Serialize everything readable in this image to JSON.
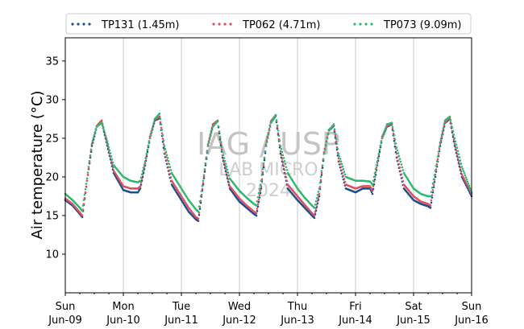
{
  "chart_data": {
    "type": "scatter",
    "ylabel": "Air temperature (°C)",
    "ylim": [
      5,
      38
    ],
    "yticks": [
      10,
      15,
      20,
      25,
      30,
      35
    ],
    "xlim": [
      "2024-06-09",
      "2024-06-16"
    ],
    "xticks": [
      {
        "date": "2024-06-09",
        "day": "Sun",
        "label": "Jun-09"
      },
      {
        "date": "2024-06-10",
        "day": "Mon",
        "label": "Jun-10"
      },
      {
        "date": "2024-06-11",
        "day": "Tue",
        "label": "Jun-11"
      },
      {
        "date": "2024-06-12",
        "day": "Wed",
        "label": "Jun-12"
      },
      {
        "date": "2024-06-13",
        "day": "Thu",
        "label": "Jun-13"
      },
      {
        "date": "2024-06-14",
        "day": "Fri",
        "label": "Jun-14"
      },
      {
        "date": "2024-06-15",
        "day": "Sat",
        "label": "Jun-15"
      },
      {
        "date": "2024-06-16",
        "day": "Sun",
        "label": "Jun-16"
      }
    ],
    "grid": "vertical",
    "legend_position": "top",
    "watermark": {
      "line1": "IAG / USP",
      "line2": "LAB MICRO",
      "line3": "2024"
    },
    "series": [
      {
        "name": "TP131 (1.45m)",
        "color": "#1f4e8c",
        "x": [
          "2024-06-09 00:00",
          "2024-06-09 03:00",
          "2024-06-09 06:00",
          "2024-06-09 07:00",
          "2024-06-09 09:00",
          "2024-06-09 11:00",
          "2024-06-09 13:00",
          "2024-06-09 15:00",
          "2024-06-09 17:00",
          "2024-06-09 20:00",
          "2024-06-10 00:00",
          "2024-06-10 03:00",
          "2024-06-10 06:00",
          "2024-06-10 07:00",
          "2024-06-10 09:00",
          "2024-06-10 11:00",
          "2024-06-10 13:00",
          "2024-06-10 15:00",
          "2024-06-10 17:00",
          "2024-06-10 20:00",
          "2024-06-11 00:00",
          "2024-06-11 03:00",
          "2024-06-11 06:00",
          "2024-06-11 07:00",
          "2024-06-11 09:00",
          "2024-06-11 11:00",
          "2024-06-11 13:00",
          "2024-06-11 15:00",
          "2024-06-11 17:00",
          "2024-06-11 20:00",
          "2024-06-12 00:00",
          "2024-06-12 03:00",
          "2024-06-12 06:00",
          "2024-06-12 07:00",
          "2024-06-12 09:00",
          "2024-06-12 11:00",
          "2024-06-12 13:00",
          "2024-06-12 15:00",
          "2024-06-12 17:00",
          "2024-06-12 20:00",
          "2024-06-13 00:00",
          "2024-06-13 03:00",
          "2024-06-13 06:00",
          "2024-06-13 07:00",
          "2024-06-13 09:00",
          "2024-06-13 11:00",
          "2024-06-13 13:00",
          "2024-06-13 15:00",
          "2024-06-13 17:00",
          "2024-06-13 20:00",
          "2024-06-14 00:00",
          "2024-06-14 03:00",
          "2024-06-14 06:00",
          "2024-06-14 07:00",
          "2024-06-14 09:00",
          "2024-06-14 11:00",
          "2024-06-14 13:00",
          "2024-06-14 15:00",
          "2024-06-14 17:00",
          "2024-06-14 20:00",
          "2024-06-15 00:00",
          "2024-06-15 03:00",
          "2024-06-15 06:00",
          "2024-06-15 07:00",
          "2024-06-15 09:00",
          "2024-06-15 11:00",
          "2024-06-15 13:00",
          "2024-06-15 15:00",
          "2024-06-15 17:00",
          "2024-06-15 20:00",
          "2024-06-16 00:00"
        ],
        "y": [
          17.0,
          16.3,
          15.2,
          14.8,
          19.5,
          24.0,
          26.5,
          27.2,
          24.5,
          20.5,
          18.3,
          18.0,
          18.0,
          18.5,
          21.5,
          25.0,
          27.3,
          27.6,
          23.0,
          19.0,
          17.0,
          15.5,
          14.5,
          14.3,
          19.0,
          24.0,
          26.7,
          27.2,
          22.5,
          18.5,
          16.8,
          16.0,
          15.2,
          15.0,
          18.5,
          24.0,
          27.0,
          27.9,
          23.0,
          18.5,
          17.0,
          16.0,
          15.0,
          14.7,
          17.5,
          23.0,
          26.0,
          26.6,
          22.0,
          18.5,
          18.0,
          18.5,
          18.5,
          17.8,
          21.5,
          25.0,
          26.5,
          26.8,
          22.5,
          18.5,
          17.0,
          16.5,
          16.2,
          16.0,
          20.0,
          24.0,
          27.0,
          27.5,
          24.0,
          20.0,
          17.5
        ]
      },
      {
        "name": "TP062 (4.71m)",
        "color": "#d9525e",
        "x": [
          "2024-06-09 00:00",
          "2024-06-09 03:00",
          "2024-06-09 06:00",
          "2024-06-09 07:00",
          "2024-06-09 09:00",
          "2024-06-09 11:00",
          "2024-06-09 13:00",
          "2024-06-09 15:00",
          "2024-06-09 17:00",
          "2024-06-09 20:00",
          "2024-06-10 00:00",
          "2024-06-10 03:00",
          "2024-06-10 06:00",
          "2024-06-10 07:00",
          "2024-06-10 09:00",
          "2024-06-10 11:00",
          "2024-06-10 13:00",
          "2024-06-10 15:00",
          "2024-06-10 17:00",
          "2024-06-10 20:00",
          "2024-06-11 00:00",
          "2024-06-11 03:00",
          "2024-06-11 06:00",
          "2024-06-11 07:00",
          "2024-06-11 09:00",
          "2024-06-11 11:00",
          "2024-06-11 13:00",
          "2024-06-11 15:00",
          "2024-06-11 17:00",
          "2024-06-11 20:00",
          "2024-06-12 00:00",
          "2024-06-12 03:00",
          "2024-06-12 06:00",
          "2024-06-12 07:00",
          "2024-06-12 09:00",
          "2024-06-12 11:00",
          "2024-06-12 13:00",
          "2024-06-12 15:00",
          "2024-06-12 17:00",
          "2024-06-12 20:00",
          "2024-06-13 00:00",
          "2024-06-13 03:00",
          "2024-06-13 06:00",
          "2024-06-13 07:00",
          "2024-06-13 09:00",
          "2024-06-13 11:00",
          "2024-06-13 13:00",
          "2024-06-13 15:00",
          "2024-06-13 17:00",
          "2024-06-13 20:00",
          "2024-06-14 00:00",
          "2024-06-14 03:00",
          "2024-06-14 06:00",
          "2024-06-14 07:00",
          "2024-06-14 09:00",
          "2024-06-14 11:00",
          "2024-06-14 13:00",
          "2024-06-14 15:00",
          "2024-06-14 17:00",
          "2024-06-14 20:00",
          "2024-06-15 00:00",
          "2024-06-15 03:00",
          "2024-06-15 06:00",
          "2024-06-15 07:00",
          "2024-06-15 09:00",
          "2024-06-15 11:00",
          "2024-06-15 13:00",
          "2024-06-15 15:00",
          "2024-06-15 17:00",
          "2024-06-15 20:00",
          "2024-06-16 00:00"
        ],
        "y": [
          17.2,
          16.5,
          15.4,
          15.0,
          19.5,
          24.2,
          26.6,
          27.3,
          24.8,
          20.8,
          18.8,
          18.5,
          18.5,
          18.8,
          21.8,
          25.2,
          27.4,
          27.8,
          23.5,
          19.5,
          17.5,
          16.0,
          14.8,
          14.6,
          19.2,
          24.2,
          26.8,
          27.3,
          22.8,
          18.8,
          17.2,
          16.3,
          15.5,
          15.3,
          18.8,
          24.2,
          27.2,
          28.0,
          23.3,
          19.0,
          17.5,
          16.4,
          15.3,
          15.0,
          17.8,
          23.2,
          26.1,
          26.7,
          22.4,
          19.0,
          18.5,
          18.8,
          18.8,
          18.2,
          21.8,
          25.2,
          26.6,
          26.9,
          23.0,
          19.0,
          17.5,
          16.8,
          16.5,
          16.3,
          20.3,
          24.3,
          27.1,
          27.6,
          24.3,
          20.3,
          17.8
        ]
      },
      {
        "name": "TP073 (9.09m)",
        "color": "#2eb872",
        "x": [
          "2024-06-09 00:00",
          "2024-06-09 03:00",
          "2024-06-09 06:00",
          "2024-06-09 07:00",
          "2024-06-09 09:00",
          "2024-06-09 11:00",
          "2024-06-09 13:00",
          "2024-06-09 15:00",
          "2024-06-09 17:00",
          "2024-06-09 20:00",
          "2024-06-10 00:00",
          "2024-06-10 03:00",
          "2024-06-10 06:00",
          "2024-06-10 07:00",
          "2024-06-10 09:00",
          "2024-06-10 11:00",
          "2024-06-10 13:00",
          "2024-06-10 15:00",
          "2024-06-10 17:00",
          "2024-06-10 20:00",
          "2024-06-11 00:00",
          "2024-06-11 03:00",
          "2024-06-11 06:00",
          "2024-06-11 07:00",
          "2024-06-11 09:00",
          "2024-06-11 11:00",
          "2024-06-11 13:00",
          "2024-06-11 15:00",
          "2024-06-11 17:00",
          "2024-06-11 20:00",
          "2024-06-12 00:00",
          "2024-06-12 03:00",
          "2024-06-12 06:00",
          "2024-06-12 07:00",
          "2024-06-12 09:00",
          "2024-06-12 11:00",
          "2024-06-12 13:00",
          "2024-06-12 15:00",
          "2024-06-12 17:00",
          "2024-06-12 20:00",
          "2024-06-13 00:00",
          "2024-06-13 03:00",
          "2024-06-13 06:00",
          "2024-06-13 07:00",
          "2024-06-13 09:00",
          "2024-06-13 11:00",
          "2024-06-13 13:00",
          "2024-06-13 15:00",
          "2024-06-13 17:00",
          "2024-06-13 20:00",
          "2024-06-14 00:00",
          "2024-06-14 03:00",
          "2024-06-14 06:00",
          "2024-06-14 07:00",
          "2024-06-14 09:00",
          "2024-06-14 11:00",
          "2024-06-14 13:00",
          "2024-06-14 15:00",
          "2024-06-14 17:00",
          "2024-06-14 20:00",
          "2024-06-15 00:00",
          "2024-06-15 03:00",
          "2024-06-15 06:00",
          "2024-06-15 07:00",
          "2024-06-15 09:00",
          "2024-06-15 11:00",
          "2024-06-15 13:00",
          "2024-06-15 15:00",
          "2024-06-15 17:00",
          "2024-06-15 20:00",
          "2024-06-16 00:00"
        ],
        "y": [
          17.8,
          17.0,
          16.0,
          15.6,
          19.8,
          24.3,
          26.5,
          27.0,
          25.0,
          21.5,
          20.0,
          19.5,
          19.3,
          19.5,
          22.0,
          25.0,
          27.5,
          28.2,
          24.0,
          20.5,
          18.5,
          17.0,
          15.8,
          15.5,
          19.5,
          24.0,
          26.5,
          27.2,
          23.2,
          19.8,
          18.2,
          17.3,
          16.5,
          16.3,
          19.5,
          24.0,
          27.0,
          28.0,
          24.0,
          20.5,
          18.5,
          17.3,
          16.3,
          16.0,
          18.5,
          23.0,
          26.0,
          26.8,
          23.0,
          20.0,
          19.5,
          19.5,
          19.4,
          19.0,
          22.0,
          25.0,
          26.8,
          27.0,
          23.8,
          20.5,
          18.5,
          17.8,
          17.5,
          17.5,
          20.8,
          24.5,
          27.3,
          27.8,
          25.0,
          21.3,
          18.0
        ]
      }
    ]
  }
}
